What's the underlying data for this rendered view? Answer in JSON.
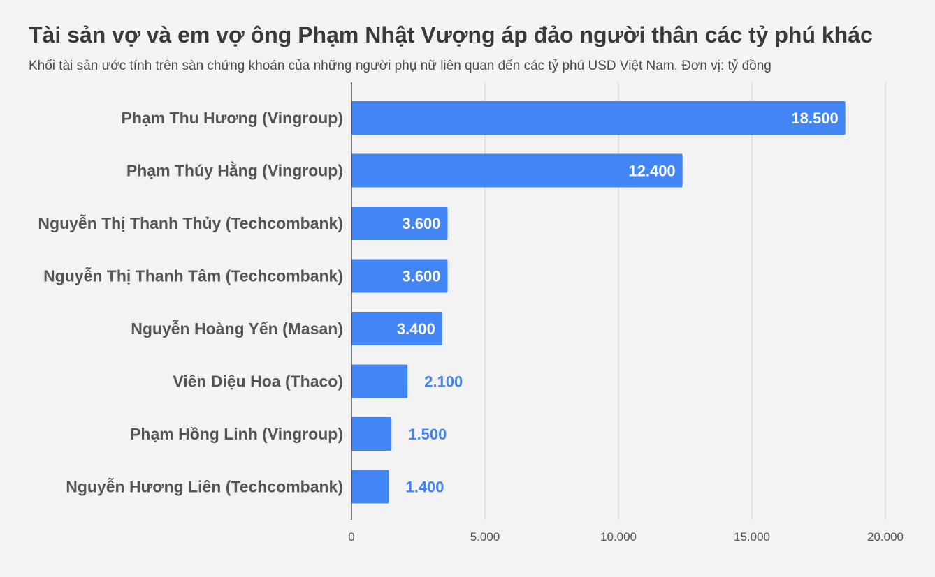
{
  "chart_data": {
    "type": "bar",
    "orientation": "horizontal",
    "title": "Tài sản vợ và em vợ ông Phạm Nhật Vượng áp đảo người thân các tỷ phú khác",
    "subtitle": "Khối tài sản ước tính trên sàn chứng khoán của những người phụ nữ liên quan đến các tỷ phú USD Việt Nam. Đơn vị: tỷ đồng",
    "categories": [
      "Phạm Thu Hương (Vingroup)",
      "Phạm Thúy Hằng (Vingroup)",
      "Nguyễn Thị Thanh Thủy (Techcombank)",
      "Nguyễn Thị Thanh Tâm (Techcombank)",
      "Nguyễn Hoàng Yến (Masan)",
      "Viên Diệu Hoa (Thaco)",
      "Phạm Hồng Linh (Vingroup)",
      "Nguyễn Hương Liên (Techcombank)"
    ],
    "values": [
      18500,
      12400,
      3600,
      3600,
      3400,
      2100,
      1500,
      1400
    ],
    "data_labels": [
      "18.500",
      "12.400",
      "3.600",
      "3.600",
      "3.400",
      "2.100",
      "1.500",
      "1.400"
    ],
    "xlim": [
      0,
      20000
    ],
    "xticks": [
      0,
      5000,
      10000,
      15000,
      20000
    ],
    "xtick_labels": [
      "0",
      "5.000",
      "10.000",
      "15.000",
      "20.000"
    ],
    "grid": true,
    "bar_color": "#4285f4",
    "label_inside_color": "#ffffff",
    "label_outside_color": "#4285f4",
    "background_color": "#f3f3f3"
  }
}
